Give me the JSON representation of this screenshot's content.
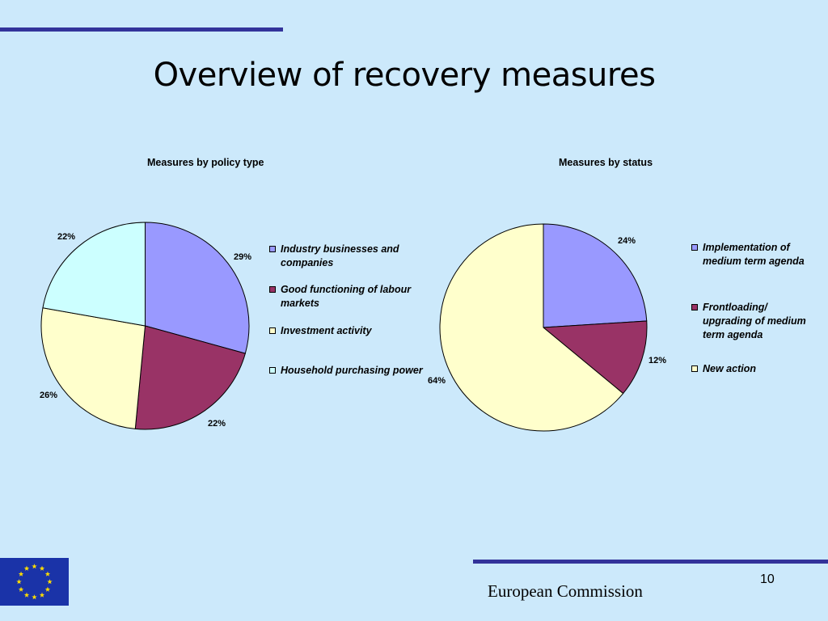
{
  "slide": {
    "title": "Overview of recovery measures",
    "footer": "European Commission",
    "page_number": "10"
  },
  "colors": {
    "background": "#cce9fb",
    "rule": "#33339a",
    "flag_blue": "#1a33a8",
    "flag_star": "#ffdd00"
  },
  "chart_data": [
    {
      "type": "pie",
      "title": "Measures by policy type",
      "categories": [
        "Industry businesses and companies",
        "Good functioning of labour markets",
        "Investment activity",
        "Household purchasing power"
      ],
      "values": [
        29,
        22,
        26,
        22
      ],
      "labels": [
        "29%",
        "22%",
        "26%",
        "22%"
      ],
      "colors": [
        "#9999ff",
        "#993366",
        "#ffffcc",
        "#ccffff"
      ],
      "legend_position": "right"
    },
    {
      "type": "pie",
      "title": "Measures by status",
      "categories": [
        "Implementation of medium term agenda",
        "Frontloading/ upgrading of medium term agenda",
        "New action"
      ],
      "values": [
        24,
        12,
        64
      ],
      "labels": [
        "24%",
        "12%",
        "64%"
      ],
      "colors": [
        "#9999ff",
        "#993366",
        "#ffffcc"
      ],
      "legend_position": "right"
    }
  ]
}
